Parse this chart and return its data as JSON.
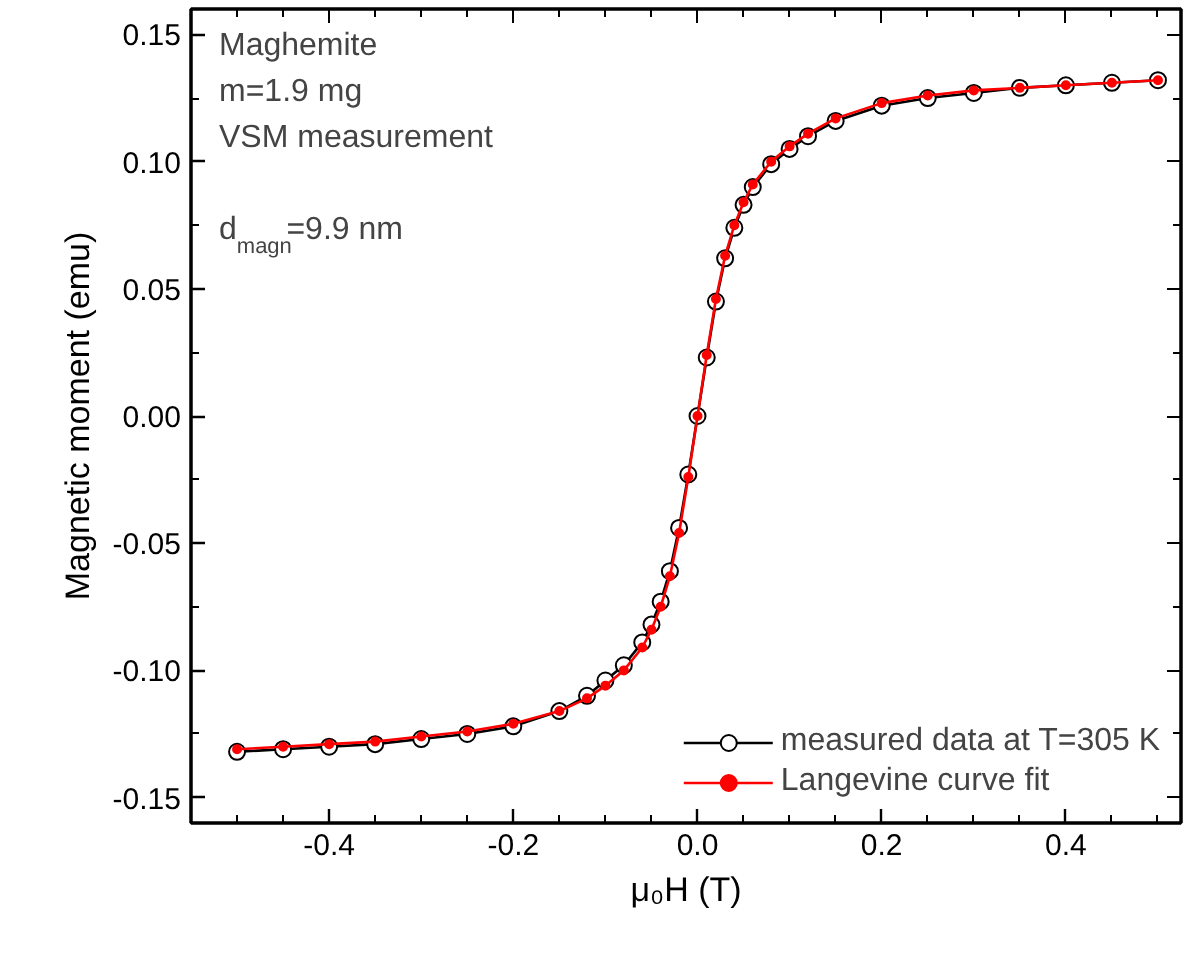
{
  "chart_data": {
    "type": "line",
    "xlabel": "μ₀H (T)",
    "ylabel": "Magnetic moment (emu)",
    "annotations": [
      "Maghemite",
      "m=1.9 mg",
      "VSM measurement",
      "d$_{magn}$=9.9 nm"
    ],
    "xlim": [
      -0.55,
      0.525
    ],
    "ylim": [
      -0.16,
      0.16
    ],
    "xticks": [
      -0.4,
      -0.2,
      {
        "value": 0,
        "label": "0.0"
      },
      0.2,
      0.4
    ],
    "yticks": [
      -0.15,
      {
        "value": -0.1,
        "label": "-0.10"
      },
      -0.05,
      {
        "value": 0,
        "label": "0.00"
      },
      0.05,
      {
        "value": 0.1,
        "label": "0.10"
      },
      0.15
    ],
    "x": [
      -0.5,
      -0.45,
      -0.4,
      -0.35,
      -0.3,
      -0.25,
      -0.2,
      -0.15,
      -0.12,
      -0.1,
      -0.08,
      -0.06,
      -0.05,
      -0.04,
      -0.03,
      -0.02,
      -0.01,
      0,
      0.01,
      0.02,
      0.03,
      0.04,
      0.05,
      0.06,
      0.08,
      0.1,
      0.12,
      0.15,
      0.2,
      0.25,
      0.3,
      0.35,
      0.4,
      0.45,
      0.5
    ],
    "series": [
      {
        "name": "measured data at T=305 K",
        "color": "#000000",
        "marker": "circle",
        "values": [
          -0.132,
          -0.131,
          -0.13,
          -0.129,
          -0.127,
          -0.125,
          -0.122,
          -0.116,
          -0.11,
          -0.104,
          -0.098,
          -0.089,
          -0.082,
          -0.073,
          -0.061,
          -0.044,
          -0.023,
          0,
          0.023,
          0.045,
          0.062,
          0.074,
          0.083,
          0.09,
          0.099,
          0.105,
          0.11,
          0.116,
          0.122,
          0.125,
          0.127,
          0.129,
          0.13,
          0.131,
          0.132
        ]
      },
      {
        "name": "Langevine curve fit",
        "color": "#ff0000",
        "marker": "dot",
        "values": [
          -0.131,
          -0.13,
          -0.129,
          -0.128,
          -0.126,
          -0.124,
          -0.121,
          -0.116,
          -0.111,
          -0.106,
          -0.1,
          -0.091,
          -0.084,
          -0.075,
          -0.063,
          -0.046,
          -0.024,
          0,
          0.024,
          0.046,
          0.063,
          0.075,
          0.084,
          0.091,
          0.1,
          0.106,
          0.111,
          0.117,
          0.123,
          0.126,
          0.128,
          0.129,
          0.13,
          0.131,
          0.132
        ]
      }
    ],
    "legend": "bottom right",
    "grid": false
  }
}
